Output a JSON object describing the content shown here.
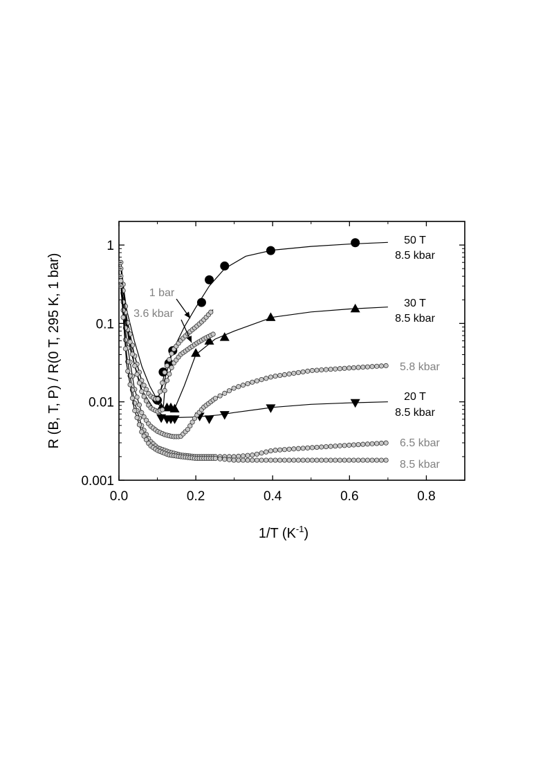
{
  "chart_data": {
    "type": "scatter",
    "xlabel": "1/T (K",
    "xlabel_sup": "-1",
    "xlabel_end": ")",
    "ylabel": "R (B, T, P) / R(0 T, 295 K, 1 bar)",
    "xlim": [
      0.0,
      0.9
    ],
    "ylim": [
      0.001,
      2.0
    ],
    "yscale": "log",
    "x_ticks": [
      0.0,
      0.2,
      0.4,
      0.6,
      0.8
    ],
    "x_tick_labels": [
      "0.0",
      "0.2",
      "0.4",
      "0.6",
      "0.8"
    ],
    "y_ticks": [
      0.001,
      0.01,
      0.1,
      1
    ],
    "y_tick_labels": [
      "0.001",
      "0.01",
      "0.1",
      "1"
    ],
    "grid": false,
    "series": [
      {
        "label_lines": [
          "50 T",
          "8.5 kbar"
        ],
        "colors": [
          "#000000",
          "#000000"
        ],
        "marker": "circle-filled",
        "points": [
          [
            0.1,
            0.0105
          ],
          [
            0.115,
            0.024
          ],
          [
            0.13,
            0.031
          ],
          [
            0.14,
            0.045
          ],
          [
            0.215,
            0.185
          ],
          [
            0.235,
            0.36
          ],
          [
            0.275,
            0.54
          ],
          [
            0.395,
            0.85
          ],
          [
            0.615,
            1.07
          ]
        ],
        "curve": [
          [
            0.005,
            0.5
          ],
          [
            0.02,
            0.15
          ],
          [
            0.04,
            0.06
          ],
          [
            0.06,
            0.028
          ],
          [
            0.08,
            0.016
          ],
          [
            0.1,
            0.0105
          ],
          [
            0.12,
            0.02
          ],
          [
            0.14,
            0.045
          ],
          [
            0.17,
            0.09
          ],
          [
            0.2,
            0.16
          ],
          [
            0.235,
            0.3
          ],
          [
            0.275,
            0.5
          ],
          [
            0.33,
            0.72
          ],
          [
            0.4,
            0.86
          ],
          [
            0.5,
            0.96
          ],
          [
            0.6,
            1.03
          ],
          [
            0.7,
            1.08
          ]
        ]
      },
      {
        "label_lines": [
          "30 T",
          "8.5 kbar"
        ],
        "colors": [
          "#000000",
          "#000000"
        ],
        "marker": "triangle-up",
        "points": [
          [
            0.11,
            0.0085
          ],
          [
            0.125,
            0.0085
          ],
          [
            0.135,
            0.0085
          ],
          [
            0.145,
            0.0082
          ],
          [
            0.2,
            0.042
          ],
          [
            0.235,
            0.06
          ],
          [
            0.275,
            0.067
          ],
          [
            0.395,
            0.12
          ],
          [
            0.615,
            0.155
          ]
        ],
        "curve": [
          [
            0.005,
            0.3
          ],
          [
            0.03,
            0.06
          ],
          [
            0.06,
            0.018
          ],
          [
            0.09,
            0.01
          ],
          [
            0.12,
            0.0083
          ],
          [
            0.145,
            0.0082
          ],
          [
            0.17,
            0.016
          ],
          [
            0.2,
            0.04
          ],
          [
            0.25,
            0.063
          ],
          [
            0.3,
            0.08
          ],
          [
            0.4,
            0.12
          ],
          [
            0.5,
            0.14
          ],
          [
            0.6,
            0.153
          ],
          [
            0.7,
            0.162
          ]
        ]
      },
      {
        "label_lines": [
          "20 T",
          "8.5 kbar"
        ],
        "colors": [
          "#000000",
          "#000000"
        ],
        "marker": "triangle-down",
        "points": [
          [
            0.11,
            0.0062
          ],
          [
            0.125,
            0.006
          ],
          [
            0.135,
            0.006
          ],
          [
            0.145,
            0.006
          ],
          [
            0.21,
            0.0065
          ],
          [
            0.235,
            0.006
          ],
          [
            0.275,
            0.0068
          ],
          [
            0.395,
            0.0083
          ],
          [
            0.615,
            0.0097
          ]
        ],
        "curve": [
          [
            0.005,
            0.25
          ],
          [
            0.03,
            0.045
          ],
          [
            0.06,
            0.014
          ],
          [
            0.09,
            0.0082
          ],
          [
            0.12,
            0.0064
          ],
          [
            0.15,
            0.0063
          ],
          [
            0.2,
            0.0064
          ],
          [
            0.26,
            0.0068
          ],
          [
            0.3,
            0.0073
          ],
          [
            0.4,
            0.0085
          ],
          [
            0.5,
            0.0093
          ],
          [
            0.6,
            0.0097
          ],
          [
            0.7,
            0.01
          ]
        ]
      },
      {
        "label_lines": [
          "1 bar"
        ],
        "colors": [
          "#808080"
        ],
        "marker": "circle-open-small",
        "points": [],
        "curve": [
          [
            0.005,
            0.6
          ],
          [
            0.02,
            0.12
          ],
          [
            0.04,
            0.04
          ],
          [
            0.06,
            0.018
          ],
          [
            0.08,
            0.012
          ],
          [
            0.1,
            0.0105
          ],
          [
            0.11,
            0.015
          ],
          [
            0.12,
            0.025
          ],
          [
            0.14,
            0.045
          ],
          [
            0.16,
            0.06
          ],
          [
            0.18,
            0.075
          ],
          [
            0.2,
            0.09
          ],
          [
            0.22,
            0.11
          ],
          [
            0.245,
            0.15
          ]
        ]
      },
      {
        "label_lines": [
          "3.6 kbar"
        ],
        "colors": [
          "#808080"
        ],
        "marker": "circle-open-small",
        "points": [],
        "curve": [
          [
            0.005,
            0.5
          ],
          [
            0.02,
            0.1
          ],
          [
            0.04,
            0.03
          ],
          [
            0.06,
            0.013
          ],
          [
            0.08,
            0.0085
          ],
          [
            0.1,
            0.0075
          ],
          [
            0.115,
            0.008
          ],
          [
            0.12,
            0.016
          ],
          [
            0.14,
            0.03
          ],
          [
            0.16,
            0.04
          ],
          [
            0.18,
            0.047
          ],
          [
            0.2,
            0.055
          ],
          [
            0.22,
            0.063
          ],
          [
            0.25,
            0.075
          ]
        ]
      },
      {
        "label_lines": [
          "5.8 kbar"
        ],
        "colors": [
          "#808080"
        ],
        "marker": "circle-open-small",
        "points": [],
        "curve": [
          [
            0.005,
            0.4
          ],
          [
            0.02,
            0.06
          ],
          [
            0.04,
            0.015
          ],
          [
            0.06,
            0.007
          ],
          [
            0.08,
            0.005
          ],
          [
            0.1,
            0.0042
          ],
          [
            0.12,
            0.0038
          ],
          [
            0.14,
            0.0036
          ],
          [
            0.16,
            0.0036
          ],
          [
            0.18,
            0.0045
          ],
          [
            0.2,
            0.0065
          ],
          [
            0.22,
            0.0085
          ],
          [
            0.25,
            0.011
          ],
          [
            0.3,
            0.015
          ],
          [
            0.35,
            0.018
          ],
          [
            0.4,
            0.021
          ],
          [
            0.5,
            0.025
          ],
          [
            0.6,
            0.027
          ],
          [
            0.7,
            0.029
          ]
        ]
      },
      {
        "label_lines": [
          "6.5 kbar"
        ],
        "colors": [
          "#808080"
        ],
        "marker": "circle-open-small",
        "points": [],
        "curve": [
          [
            0.005,
            0.35
          ],
          [
            0.02,
            0.04
          ],
          [
            0.04,
            0.01
          ],
          [
            0.06,
            0.0048
          ],
          [
            0.08,
            0.0032
          ],
          [
            0.1,
            0.0026
          ],
          [
            0.13,
            0.0023
          ],
          [
            0.16,
            0.0021
          ],
          [
            0.2,
            0.002
          ],
          [
            0.25,
            0.002
          ],
          [
            0.3,
            0.002
          ],
          [
            0.35,
            0.0021
          ],
          [
            0.4,
            0.0024
          ],
          [
            0.5,
            0.0026
          ],
          [
            0.6,
            0.0028
          ],
          [
            0.7,
            0.003
          ]
        ]
      },
      {
        "label_lines": [
          "8.5 kbar"
        ],
        "colors": [
          "#808080"
        ],
        "marker": "circle-open-small",
        "points": [],
        "curve": [
          [
            0.005,
            0.3
          ],
          [
            0.02,
            0.03
          ],
          [
            0.04,
            0.008
          ],
          [
            0.06,
            0.004
          ],
          [
            0.08,
            0.0028
          ],
          [
            0.1,
            0.0024
          ],
          [
            0.13,
            0.0021
          ],
          [
            0.16,
            0.002
          ],
          [
            0.2,
            0.0019
          ],
          [
            0.25,
            0.0019
          ],
          [
            0.3,
            0.0018
          ],
          [
            0.4,
            0.0018
          ],
          [
            0.5,
            0.0018
          ],
          [
            0.6,
            0.0018
          ],
          [
            0.7,
            0.0018
          ]
        ]
      }
    ]
  }
}
